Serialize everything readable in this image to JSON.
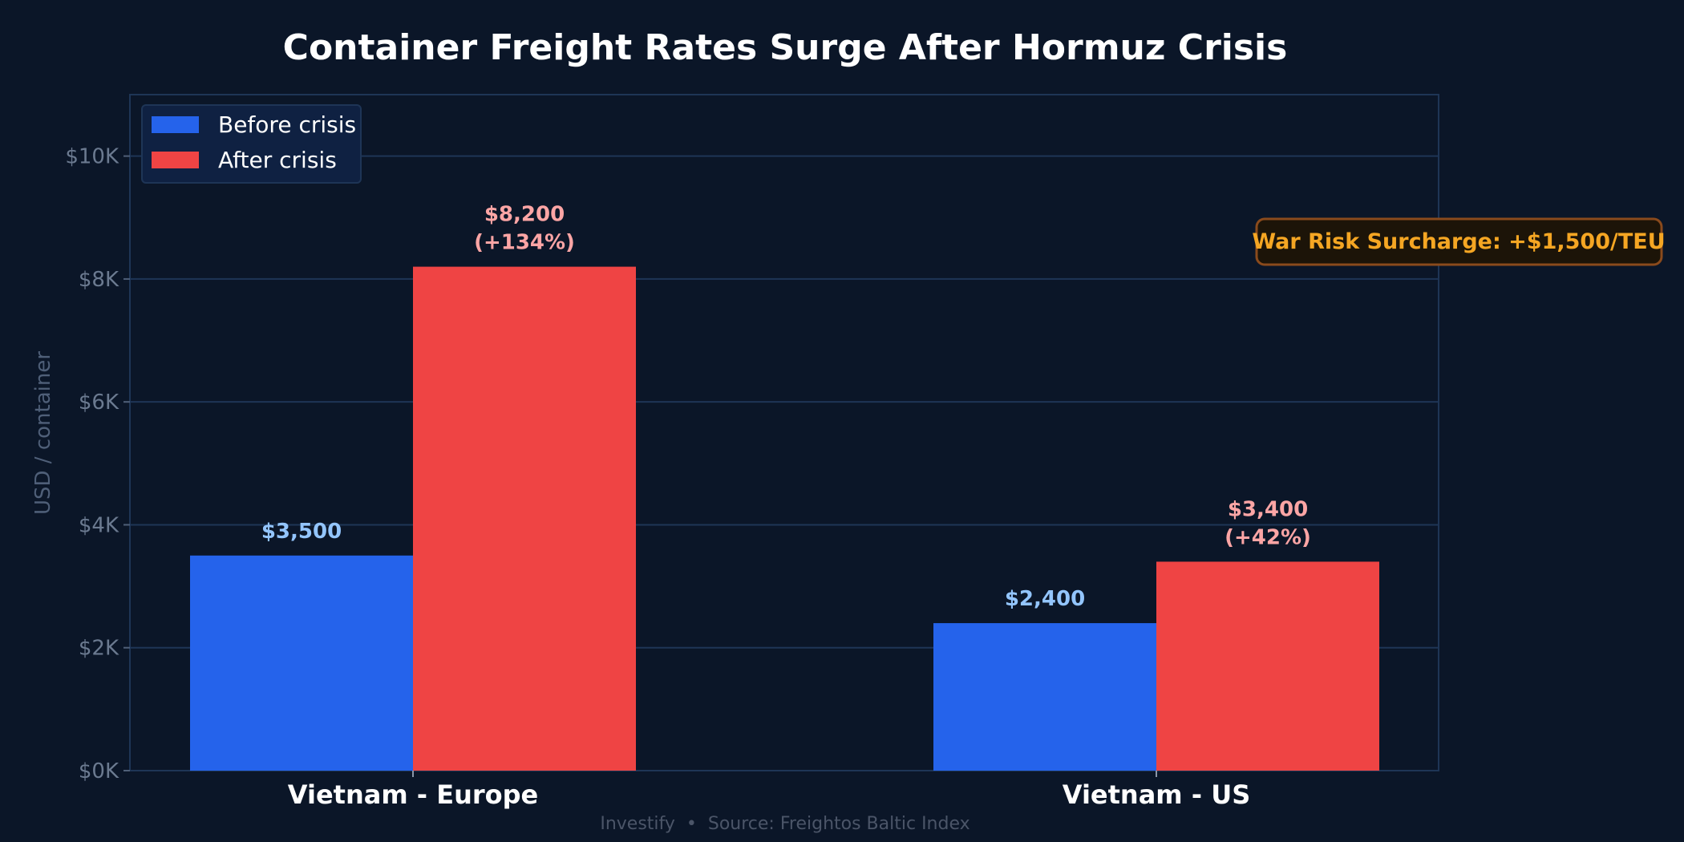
{
  "chart_data": {
    "type": "bar",
    "title": "Container Freight Rates Surge After Hormuz Crisis",
    "xlabel": "",
    "ylabel": "USD / container",
    "ylim": [
      0,
      11000
    ],
    "yticks": [
      0,
      2000,
      4000,
      6000,
      8000,
      10000
    ],
    "ytick_labels": [
      "$0K",
      "$2K",
      "$4K",
      "$6K",
      "$8K",
      "$10K"
    ],
    "grid": true,
    "legend_placement": "top-left",
    "categories": [
      "Vietnam - Europe",
      "Vietnam - US"
    ],
    "series": [
      {
        "name": "Before crisis",
        "color": "#2563eb",
        "label_color": "#93c5fd",
        "values": [
          3500,
          2400
        ],
        "data_labels": [
          [
            "$3,500"
          ],
          [
            "$2,400"
          ]
        ]
      },
      {
        "name": "After crisis",
        "color": "#ef4444",
        "label_color": "#fca5a5",
        "values": [
          8200,
          3400
        ],
        "data_labels": [
          [
            "$8,200",
            "(+134%)"
          ],
          [
            "$3,400",
            "(+42%)"
          ]
        ]
      }
    ],
    "annotation": {
      "text": "War Risk Surcharge: +$1,500/TEU",
      "color": "#f5a623"
    },
    "footer": "Investify  •  Source: Freightos Baltic Index"
  }
}
